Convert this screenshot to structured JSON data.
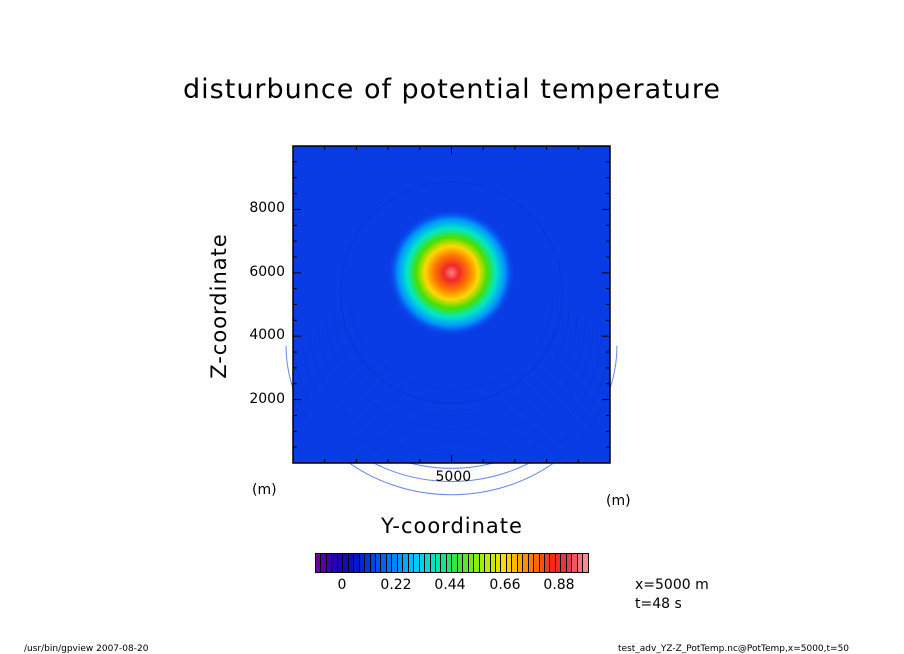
{
  "chart_data": {
    "type": "heatmap",
    "title": "disturbunce of potential temperature",
    "xlabel": "Y-coordinate",
    "ylabel": "Z-coordinate",
    "x_unit": "(m)",
    "y_unit": "(m)",
    "xlim": [
      0,
      10000
    ],
    "ylim": [
      0,
      10000
    ],
    "x_ticks": [
      "5000"
    ],
    "y_ticks": [
      "2000",
      "4000",
      "6000",
      "8000"
    ],
    "colorbar": {
      "min": 0,
      "max": 1.0,
      "tick_labels": [
        "0",
        "0.22",
        "0.44",
        "0.66",
        "0.88"
      ]
    },
    "blob": {
      "center_y": 5000,
      "center_z": 6000,
      "peak": 1.0,
      "radius": 2000
    }
  },
  "annotations": {
    "x_value": "x=5000 m",
    "time": "t=48 s"
  },
  "footer": {
    "left": "/usr/bin/gpview   2007-08-20",
    "right": "test_adv_YZ-Z_PotTemp.nc@PotTemp,x=5000,t=50"
  }
}
